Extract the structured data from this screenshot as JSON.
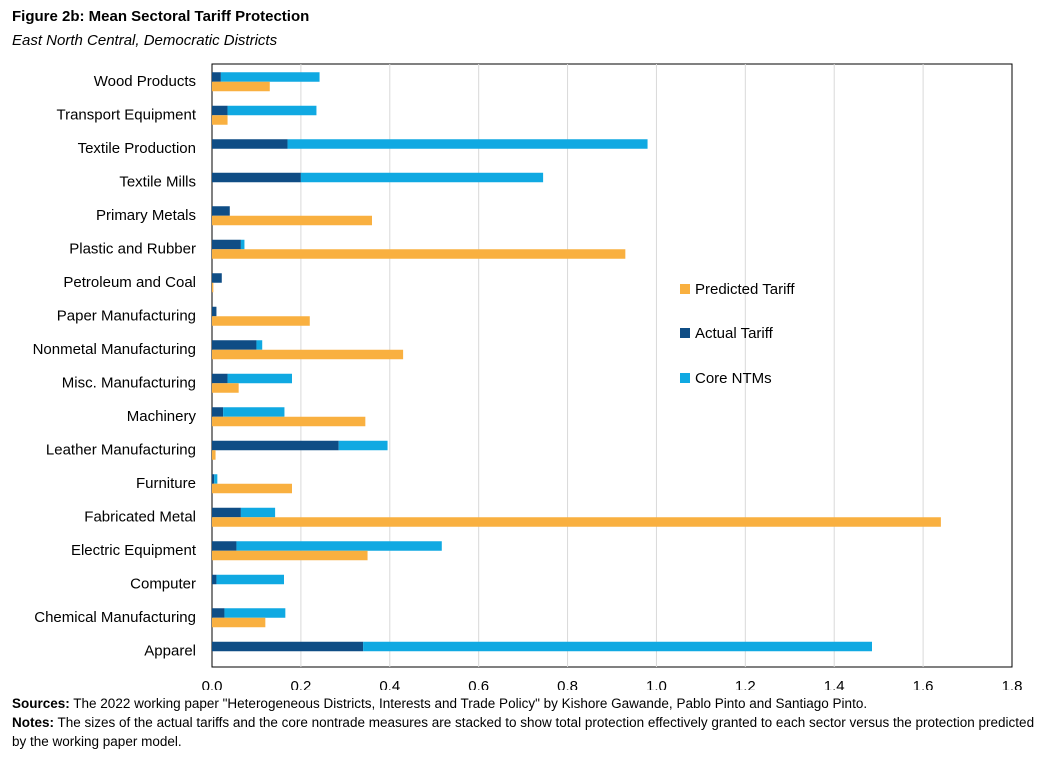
{
  "figure": {
    "title": "Figure 2b: Mean Sectoral Tariff Protection",
    "subtitle": "East North Central, Democratic Districts"
  },
  "footer": {
    "sources_label": "Sources:",
    "sources_text": " The 2022  working paper \"Heterogeneous Districts, Interests and Trade Policy\" by Kishore Gawande, Pablo Pinto and Santiago Pinto.",
    "notes_label": "Notes:",
    "notes_text": " The sizes of the actual tariffs and the core nontrade measures are stacked to show total protection effectively granted to each sector versus the protection predicted by the working paper model."
  },
  "chart_data": {
    "type": "bar",
    "orientation": "horizontal",
    "xlim": [
      0,
      1.8
    ],
    "xticks": [
      "0.0",
      "0.2",
      "0.4",
      "0.6",
      "0.8",
      "1.0",
      "1.2",
      "1.4",
      "1.6",
      "1.8"
    ],
    "grid": true,
    "legend_position": "right",
    "categories": [
      "Wood Products",
      "Transport Equipment",
      "Textile Production",
      "Textile Mills",
      "Primary Metals",
      "Plastic and Rubber",
      "Petroleum and Coal",
      "Paper Manufacturing",
      "Nonmetal Manufacturing",
      "Misc. Manufacturing",
      "Machinery",
      "Leather Manufacturing",
      "Furniture",
      "Fabricated Metal",
      "Electric Equipment",
      "Computer",
      "Chemical Manufacturing",
      "Apparel"
    ],
    "series": [
      {
        "name": "Predicted Tariff",
        "color": "#F9B040",
        "values": [
          0.13,
          0.035,
          0,
          0,
          0.36,
          0.93,
          0.003,
          0.22,
          0.43,
          0.06,
          0.345,
          0.008,
          0.18,
          1.64,
          0.35,
          0,
          0.12,
          0
        ]
      },
      {
        "name": "Actual Tariff",
        "color": "#0F4D85",
        "values": [
          0.02,
          0.035,
          0.17,
          0.2,
          0.04,
          0.065,
          0.022,
          0.01,
          0.1,
          0.035,
          0.025,
          0.285,
          0.005,
          0.065,
          0.055,
          0.01,
          0.028,
          0.34
        ]
      },
      {
        "name": "Core NTMs",
        "color": "#10A9E2",
        "values": [
          0.222,
          0.2,
          0.81,
          0.545,
          0,
          0.008,
          0,
          0,
          0.013,
          0.145,
          0.138,
          0.11,
          0.007,
          0.077,
          0.462,
          0.152,
          0.137,
          1.145
        ]
      }
    ]
  }
}
